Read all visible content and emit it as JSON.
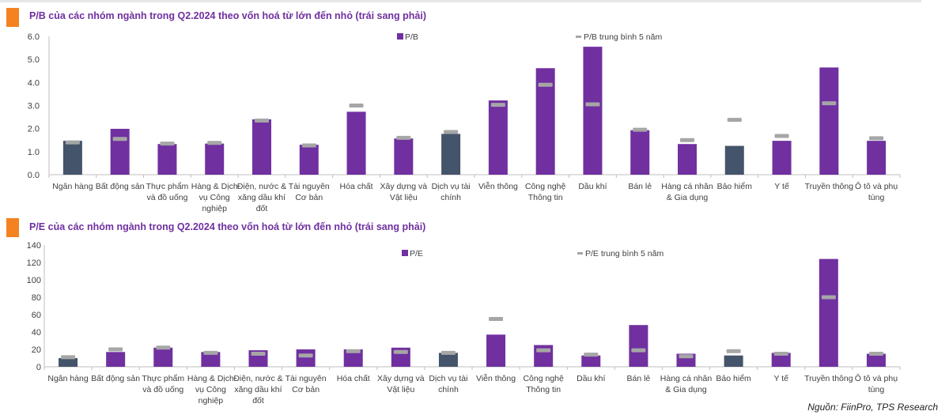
{
  "chart_data": [
    {
      "type": "bar",
      "title": "P/B của các nhóm ngành trong Q2.2024 theo vốn hoá từ lớn đến nhỏ (trái sang phải)",
      "ylim": [
        0,
        6
      ],
      "yticks": [
        "0.0",
        "1.0",
        "2.0",
        "3.0",
        "4.0",
        "5.0",
        "6.0"
      ],
      "ytick_values": [
        0,
        1,
        2,
        3,
        4,
        5,
        6
      ],
      "legend": {
        "bar": "P/B",
        "marker": "P/B trung bình 5 năm",
        "placement": "top"
      },
      "categories": [
        "Ngân hàng",
        "Bất động sản",
        "Thực phẩm\nvà đồ uống",
        "Hàng & Dịch\nvụ Công\nnghiệp",
        "Điện, nước &\nxăng dầu khí\nđốt",
        "Tài nguyên\nCơ bản",
        "Hóa chất",
        "Xây dựng và\nVật liệu",
        "Dịch vụ tài\nchính",
        "Viễn thông",
        "Công nghệ\nThông tin",
        "Dầu khí",
        "Bán lẻ",
        "Hàng cá nhân\n& Gia dụng",
        "Bảo hiểm",
        "Y tế",
        "Truyền thông",
        "Ô tô và phụ\ntùng"
      ],
      "series": [
        {
          "name": "P/B",
          "values": [
            1.47,
            1.99,
            1.33,
            1.35,
            2.4,
            1.3,
            2.73,
            1.57,
            1.77,
            3.22,
            4.62,
            5.55,
            1.93,
            1.33,
            1.25,
            1.47,
            4.65,
            1.47
          ]
        },
        {
          "name": "P/B trung bình 5 năm",
          "values": [
            1.4,
            1.55,
            1.35,
            1.38,
            2.35,
            1.27,
            3.0,
            1.6,
            1.85,
            3.03,
            3.9,
            3.05,
            1.95,
            1.5,
            2.38,
            1.68,
            3.1,
            1.58
          ]
        }
      ],
      "financial_flags": [
        true,
        false,
        false,
        false,
        false,
        false,
        false,
        false,
        true,
        false,
        false,
        false,
        false,
        false,
        true,
        false,
        false,
        false
      ]
    },
    {
      "type": "bar",
      "title": "P/E của các nhóm ngành trong Q2.2024 theo vốn hoá từ lớn đến nhỏ (trái sang phải)",
      "ylim": [
        0,
        140
      ],
      "yticks": [
        "0",
        "20",
        "40",
        "60",
        "80",
        "100",
        "120",
        "140"
      ],
      "ytick_values": [
        0,
        20,
        40,
        60,
        80,
        100,
        120,
        140
      ],
      "legend": {
        "bar": "P/E",
        "marker": "P/E trung bình 5 năm",
        "placement": "top"
      },
      "categories": [
        "Ngân hàng",
        "Bất động sản",
        "Thực phẩm\nvà đồ uống",
        "Hàng & Dịch\nvụ Công\nnghiệp",
        "Điện, nước &\nxăng dầu khí\nđốt",
        "Tài nguyên\nCơ bản",
        "Hóa chất",
        "Xây dựng và\nVật liệu",
        "Dịch vụ tài\nchính",
        "Viễn thông",
        "Công nghệ\nThông tin",
        "Dầu khí",
        "Bán lẻ",
        "Hàng cá nhân\n& Gia dụng",
        "Bảo hiểm",
        "Y tế",
        "Truyền thông",
        "Ô tô và phụ\ntùng"
      ],
      "series": [
        {
          "name": "P/E",
          "values": [
            10,
            17,
            22,
            17,
            19,
            20,
            20,
            22,
            16,
            37,
            25,
            13,
            48,
            15,
            13,
            16,
            124,
            15
          ]
        },
        {
          "name": "P/E trung bình 5 năm",
          "values": [
            11,
            20,
            22,
            16,
            15,
            13,
            18,
            17,
            16,
            55,
            19,
            14,
            19,
            12,
            18,
            15,
            80,
            15
          ]
        }
      ],
      "financial_flags": [
        true,
        false,
        false,
        false,
        false,
        false,
        false,
        false,
        true,
        false,
        false,
        false,
        false,
        false,
        true,
        false,
        false,
        false
      ]
    }
  ],
  "source": "Nguồn: FiinPro, TPS Research",
  "colors": {
    "bar": "#7030A0",
    "financial_bar": "#44546A",
    "marker": "#A6A6A6",
    "accent": "#F58220",
    "title": "#7030A0"
  }
}
